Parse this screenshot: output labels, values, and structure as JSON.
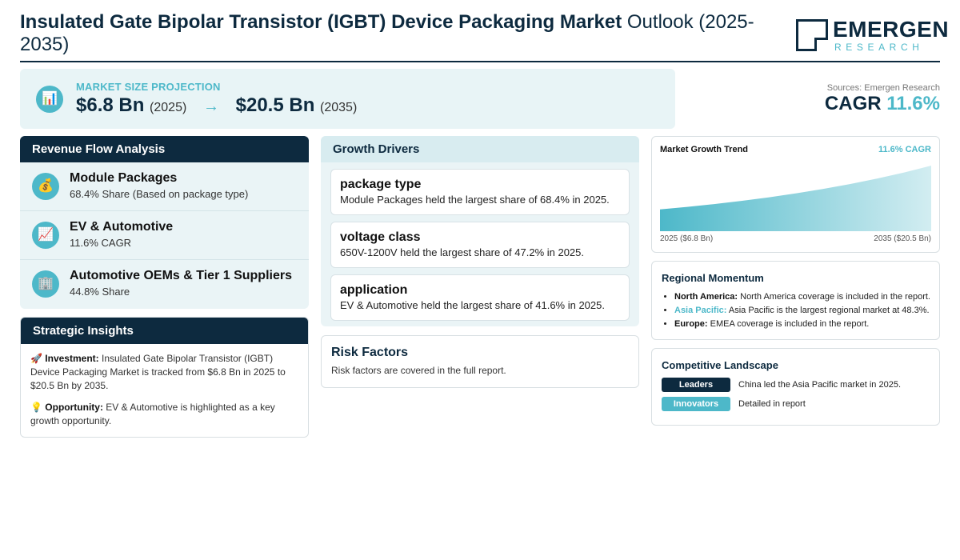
{
  "header": {
    "title_bold": "Insulated Gate Bipolar Transistor (IGBT) Device Packaging Market",
    "title_rest": "Outlook (2025-2035)",
    "logo_name": "EMERGEN",
    "logo_sub": "RESEARCH"
  },
  "projection": {
    "label": "MARKET SIZE PROJECTION",
    "start_value": "$6.8 Bn",
    "start_year": "(2025)",
    "arrow": "→",
    "end_value": "$20.5 Bn",
    "end_year": "(2035)",
    "icon": "bar-chart-icon"
  },
  "summary": {
    "sources": "Sources: Emergen Research",
    "cagr_label": "CAGR",
    "cagr_value": "11.6%"
  },
  "revenue": {
    "heading": "Revenue Flow Analysis",
    "items": [
      {
        "title": "Module Packages",
        "sub": "68.4% Share (Based on package type)",
        "icon": "money-bag-icon",
        "glyph": "💰"
      },
      {
        "title": "EV & Automotive",
        "sub": "11.6% CAGR",
        "icon": "trend-up-icon",
        "glyph": "📈"
      },
      {
        "title": "Automotive OEMs & Tier 1 Suppliers",
        "sub": "44.8% Share",
        "icon": "office-building-icon",
        "glyph": "🏢"
      }
    ]
  },
  "strategic": {
    "heading": "Strategic Insights",
    "investment_label": "Investment:",
    "investment_text": "Insulated Gate Bipolar Transistor (IGBT) Device Packaging Market is tracked from $6.8 Bn in 2025 to $20.5 Bn by 2035.",
    "opportunity_label": "Opportunity:",
    "opportunity_text": "EV & Automotive is highlighted as a key growth opportunity."
  },
  "drivers": {
    "heading": "Growth Drivers",
    "items": [
      {
        "title": "package type",
        "text": "Module Packages held the largest share of 68.4% in 2025."
      },
      {
        "title": "voltage class",
        "text": "650V-1200V held the largest share of 47.2% in 2025."
      },
      {
        "title": "application",
        "text": "EV & Automotive held the largest share of 41.6% in 2025."
      }
    ]
  },
  "risk": {
    "heading": "Risk Factors",
    "text": "Risk factors are covered in the full report."
  },
  "trend": {
    "title": "Market Growth Trend",
    "cagr": "11.6% CAGR",
    "start_label": "2025 ($6.8 Bn)",
    "end_label": "2035 ($20.5 Bn)"
  },
  "chart_data": {
    "type": "area",
    "x": [
      2025,
      2035
    ],
    "values": [
      6.8,
      20.5
    ],
    "title": "Market Growth Trend"
  },
  "regional": {
    "heading": "Regional Momentum",
    "items": [
      {
        "label": "North America:",
        "text": "North America coverage is included in the report."
      },
      {
        "label": "Asia Pacific:",
        "text": "Asia Pacific is the largest regional market at 48.3%."
      },
      {
        "label": "Europe:",
        "text": "EMEA coverage is included in the report."
      }
    ]
  },
  "competitive": {
    "heading": "Competitive Landscape",
    "leaders_label": "Leaders",
    "leaders_text": "China led the Asia Pacific market in 2025.",
    "innovators_label": "Innovators",
    "innovators_text": "Detailed in report"
  },
  "colors": {
    "navy": "#0d2a3f",
    "accent": "#4db8c9"
  }
}
